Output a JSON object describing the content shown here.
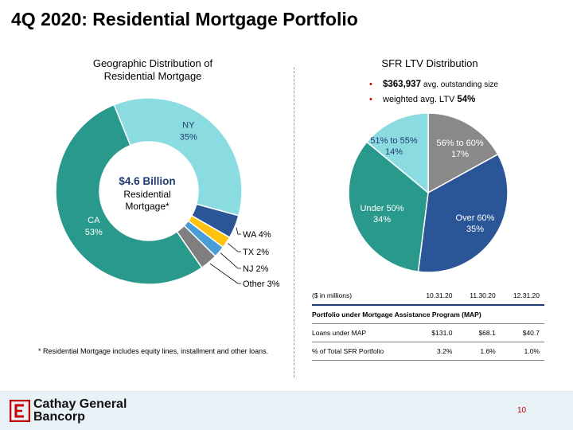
{
  "title": "4Q 2020: Residential Mortgage Portfolio",
  "geo": {
    "title_line1": "Geographic Distribution of",
    "title_line2": "Residential Mortgage",
    "center_amount": "$4.6 Billion",
    "center_line1": "Residential",
    "center_line2": "Mortgage*",
    "footnote": "* Residential Mortgage includes equity lines, installment and other loans."
  },
  "ltv": {
    "title": "SFR LTV Distribution",
    "bullet1_value": "$363,937",
    "bullet1_text": "avg. outstanding size",
    "bullet2_text": "weighted avg. LTV",
    "bullet2_value": "54%"
  },
  "chart_data": [
    {
      "type": "pie",
      "variant": "donut",
      "slices": [
        {
          "label": "NY",
          "value": 35,
          "value_label": "35%",
          "color": "#8adce0"
        },
        {
          "label": "WA",
          "value": 4,
          "value_label": "WA 4%",
          "color": "#2a5597"
        },
        {
          "label": "TX",
          "value": 2,
          "value_label": "TX 2%",
          "color": "#ffc20e"
        },
        {
          "label": "NJ",
          "value": 2,
          "value_label": "NJ 2%",
          "color": "#4a9ed8"
        },
        {
          "label": "Other",
          "value": 3,
          "value_label": "Other 3%",
          "color": "#7f7f7f"
        },
        {
          "label": "CA",
          "value": 53,
          "value_label": "53%",
          "color": "#28998a"
        }
      ]
    },
    {
      "type": "pie",
      "slices": [
        {
          "label": "56% to 60%",
          "value": 17,
          "value_label": "17%",
          "color": "#898989"
        },
        {
          "label": "Over 60%",
          "value": 35,
          "value_label": "35%",
          "color": "#2a5597"
        },
        {
          "label": "Under 50%",
          "value": 34,
          "value_label": "34%",
          "color": "#28998a"
        },
        {
          "label": "51% to 55%",
          "value": 14,
          "value_label": "14%",
          "color": "#8adce0"
        }
      ]
    }
  ],
  "map_table": {
    "header": {
      "label": "($ in millions)",
      "c1": "10.31.20",
      "c2": "11.30.20",
      "c3": "12.31.20"
    },
    "section": "Portfolio under Mortgage Assistance Program (MAP)",
    "rows": [
      {
        "label": "Loans under MAP",
        "c1": "$131.0",
        "c2": "$68.1",
        "c3": "$40.7"
      },
      {
        "label": "% of Total SFR Portfolio",
        "c1": "3.2%",
        "c2": "1.6%",
        "c3": "1.0%"
      }
    ]
  },
  "footer": {
    "logo_line1": "Cathay General",
    "logo_line2": "Bancorp",
    "page_number": "10"
  }
}
